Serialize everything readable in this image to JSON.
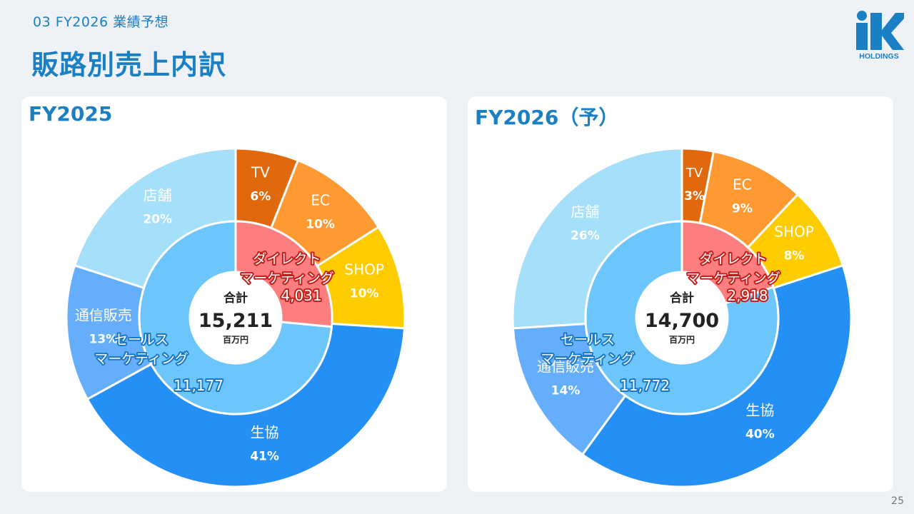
{
  "header": {
    "subtitle": "03  FY2026 業績予想",
    "title": "販路別売上内訳",
    "logo_text": "HOLDINGS"
  },
  "page_number": "25",
  "colors": {
    "accent": "#1b7fc4",
    "tv": "#e0690d",
    "ec": "#ff9a33",
    "shop": "#ffcc00",
    "seikyo": "#2490f5",
    "tsushin": "#65aefb",
    "tenpo": "#a5dff9",
    "direct": "#fc7e7e",
    "sales": "#6cc6fb"
  },
  "chart_data": [
    {
      "type": "pie",
      "title": "FY2025",
      "center_label": "合計",
      "center_value": "15,211",
      "center_unit": "百万円",
      "outer": [
        {
          "name": "TV",
          "value": 6,
          "label": "6%",
          "color": "#e0690d",
          "text_color": "#ffffff"
        },
        {
          "name": "EC",
          "value": 10,
          "label": "10%",
          "color": "#ff9a33",
          "text_color": "#ffffff"
        },
        {
          "name": "SHOP",
          "value": 10,
          "label": "10%",
          "color": "#ffcc00",
          "text_color": "#ffffff"
        },
        {
          "name": "生協",
          "value": 41,
          "label": "41%",
          "color": "#2490f5",
          "text_color": "#ffffff"
        },
        {
          "name": "通信販売",
          "value": 13,
          "label": "13%",
          "color": "#65aefb",
          "text_color": "#ffffff"
        },
        {
          "name": "店舗",
          "value": 20,
          "label": "20%",
          "color": "#a5dff9",
          "text_color": "#ffffff"
        }
      ],
      "inner": [
        {
          "name_lines": [
            "ダイレクト",
            "マーケティング"
          ],
          "value": 4031,
          "label": "4,031",
          "color": "#fc7e7e"
        },
        {
          "name_lines": [
            "セールス",
            "マーケティング"
          ],
          "value": 11177,
          "label": "11,177",
          "color": "#6cc6fb"
        }
      ]
    },
    {
      "type": "pie",
      "title": "FY2026（予）",
      "center_label": "合計",
      "center_value": "14,700",
      "center_unit": "百万円",
      "outer": [
        {
          "name": "TV",
          "value": 3,
          "label": "3%",
          "color": "#e0690d",
          "text_color": "#ffffff"
        },
        {
          "name": "EC",
          "value": 9,
          "label": "9%",
          "color": "#ff9a33",
          "text_color": "#ffffff"
        },
        {
          "name": "SHOP",
          "value": 8,
          "label": "8%",
          "color": "#ffcc00",
          "text_color": "#ffffff"
        },
        {
          "name": "生協",
          "value": 40,
          "label": "40%",
          "color": "#2490f5",
          "text_color": "#ffffff"
        },
        {
          "name": "通信販売",
          "value": 14,
          "label": "14%",
          "color": "#65aefb",
          "text_color": "#ffffff"
        },
        {
          "name": "店舗",
          "value": 26,
          "label": "26%",
          "color": "#a5dff9",
          "text_color": "#ffffff"
        }
      ],
      "inner": [
        {
          "name_lines": [
            "ダイレクト",
            "マーケティング"
          ],
          "value": 2918,
          "label": "2,918",
          "color": "#fc7e7e"
        },
        {
          "name_lines": [
            "セールス",
            "マーケティング"
          ],
          "value": 11772,
          "label": "11,772",
          "color": "#6cc6fb"
        }
      ]
    }
  ]
}
